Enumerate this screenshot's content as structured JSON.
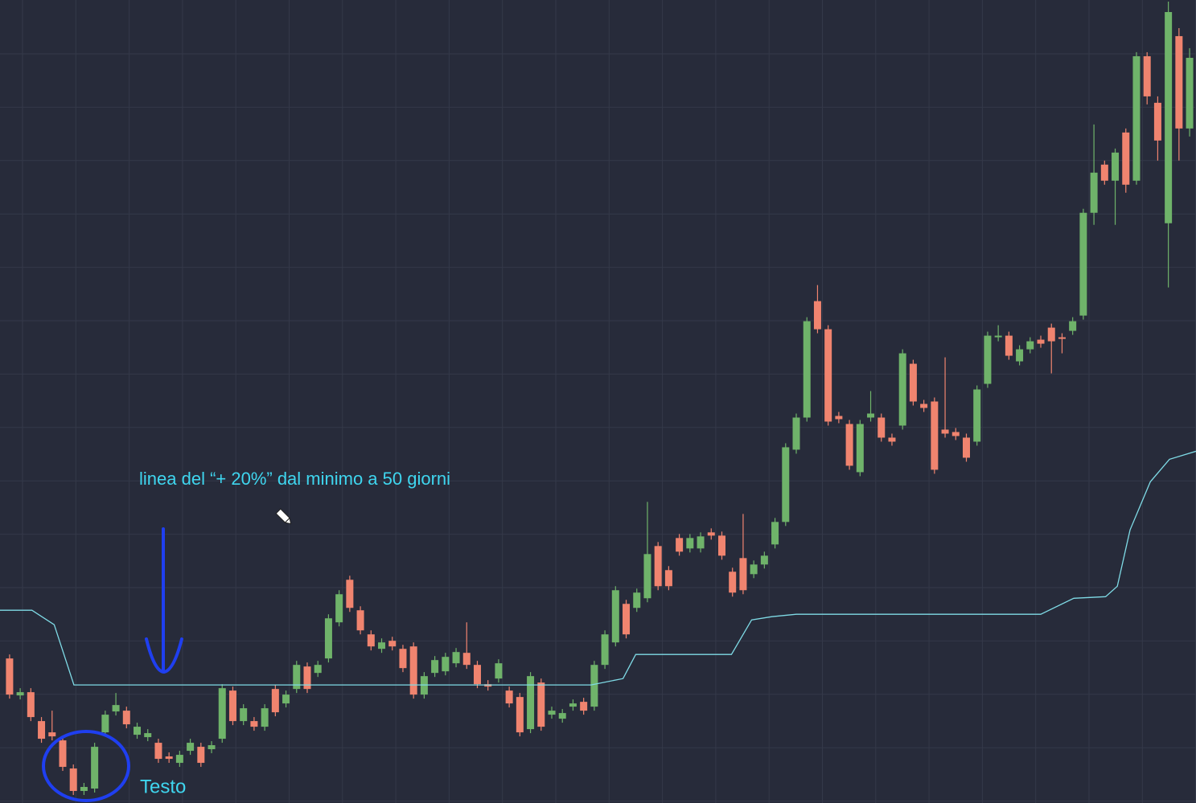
{
  "chart_data": {
    "type": "candlestick",
    "open": [
      18.0,
      13.4,
      13.8,
      10.2,
      8.8,
      7.8,
      4.3,
      1.5,
      1.8,
      8.8,
      11.4,
      11.5,
      8.5,
      8.2,
      7.5,
      5.8,
      5.0,
      6.5,
      7.0,
      6.7,
      8.0,
      14.0,
      10.2,
      10.2,
      9.5,
      14.2,
      12.4,
      14.2,
      17.0,
      16.2,
      18.0,
      22.5,
      27.8,
      24.0,
      21.0,
      19.2,
      20.2,
      19.2,
      19.5,
      13.5,
      16.2,
      16.4,
      17.4,
      18.7,
      17.2,
      14.8,
      15.5,
      14.0,
      13.2,
      9.2,
      15.0,
      11.0,
      10.5,
      12.0,
      12.6,
      12.0,
      17.2,
      20.0,
      24.8,
      24.3,
      25.5,
      32.0,
      29.0,
      33.0,
      31.7,
      31.7,
      33.7,
      33.3,
      28.8,
      30.5,
      28.5,
      29.7,
      32.2,
      35.0,
      44.0,
      48.0,
      62.5,
      59.0,
      48.2,
      47.2,
      41.2,
      48.0,
      48.0,
      45.5,
      47.0,
      54.7,
      49.7,
      50.0,
      46.5,
      46.2,
      45.5,
      45.0,
      52.2,
      58.0,
      58.2,
      55.0,
      56.5,
      57.7,
      59.2,
      58.0,
      58.8,
      60.7,
      73.5,
      79.5,
      77.5,
      83.5,
      77.5,
      93.0,
      87.2,
      72.2,
      95.5,
      84.0
    ],
    "close": [
      13.5,
      13.8,
      10.7,
      8.0,
      8.3,
      4.5,
      1.5,
      2.0,
      7.0,
      11.0,
      12.2,
      9.8,
      9.5,
      8.7,
      5.5,
      5.5,
      6.0,
      7.5,
      5.0,
      7.2,
      14.3,
      10.2,
      11.8,
      9.5,
      11.8,
      11.3,
      13.5,
      17.2,
      14.2,
      17.2,
      23.0,
      26.0,
      24.3,
      21.5,
      19.5,
      20.0,
      19.5,
      16.8,
      13.5,
      15.8,
      17.8,
      18.2,
      18.8,
      17.2,
      14.8,
      14.5,
      17.4,
      12.4,
      8.8,
      15.8,
      9.5,
      11.5,
      11.2,
      12.4,
      11.5,
      17.2,
      21.0,
      26.5,
      21.0,
      26.2,
      31.0,
      27.0,
      27.0,
      31.3,
      33.0,
      33.2,
      33.3,
      30.8,
      26.2,
      26.5,
      29.7,
      30.8,
      35.0,
      44.3,
      48.0,
      60.0,
      59.0,
      47.5,
      47.8,
      42.0,
      47.2,
      48.5,
      45.5,
      45.0,
      56.0,
      50.0,
      49.2,
      41.5,
      46.0,
      45.7,
      43.0,
      51.5,
      58.2,
      58.2,
      55.7,
      56.5,
      57.5,
      57.2,
      57.5,
      57.8,
      60.0,
      73.5,
      78.5,
      77.5,
      81.0,
      77.0,
      93.0,
      88.0,
      82.5,
      98.5,
      84.0,
      92.8
    ],
    "high": [
      18.5,
      14.3,
      14.3,
      10.7,
      11.5,
      8.3,
      4.8,
      2.5,
      7.5,
      11.5,
      13.7,
      12.0,
      10.0,
      9.2,
      8.0,
      6.3,
      6.5,
      8.0,
      7.5,
      7.7,
      14.8,
      14.5,
      12.3,
      10.7,
      12.3,
      14.7,
      14.0,
      17.7,
      17.5,
      17.7,
      23.5,
      26.5,
      28.3,
      24.5,
      21.5,
      20.5,
      20.7,
      19.7,
      20.0,
      16.3,
      18.3,
      18.7,
      19.3,
      22.5,
      17.7,
      15.3,
      17.9,
      14.5,
      13.7,
      16.3,
      15.5,
      12.0,
      11.7,
      12.9,
      13.1,
      17.7,
      21.5,
      27.0,
      25.3,
      26.7,
      37.5,
      32.5,
      29.5,
      33.5,
      33.5,
      33.7,
      34.2,
      33.8,
      29.3,
      36.0,
      30.2,
      31.3,
      35.5,
      44.8,
      48.5,
      60.5,
      64.5,
      59.5,
      48.7,
      47.7,
      47.7,
      51.3,
      48.5,
      46.0,
      56.5,
      55.2,
      50.2,
      50.5,
      55.5,
      46.7,
      46.0,
      52.0,
      58.7,
      59.5,
      58.7,
      57.0,
      58.0,
      58.2,
      59.7,
      58.5,
      60.5,
      74.0,
      84.5,
      80.0,
      81.5,
      84.0,
      93.5,
      93.5,
      88.0,
      99.8,
      96.5,
      94.0
    ],
    "low": [
      13.0,
      12.9,
      10.2,
      7.5,
      7.8,
      4.0,
      1.0,
      1.0,
      1.3,
      8.3,
      10.9,
      9.3,
      8.0,
      7.7,
      5.0,
      5.0,
      4.5,
      6.0,
      4.5,
      6.2,
      7.5,
      9.7,
      9.7,
      9.0,
      9.0,
      10.8,
      11.9,
      13.7,
      13.7,
      15.7,
      17.5,
      22.0,
      23.8,
      21.0,
      19.0,
      18.7,
      19.0,
      16.3,
      13.0,
      13.0,
      15.7,
      15.9,
      16.9,
      16.7,
      14.3,
      14.0,
      15.0,
      11.9,
      8.3,
      8.7,
      9.0,
      10.5,
      10.0,
      11.5,
      11.0,
      11.5,
      16.7,
      19.5,
      20.5,
      23.8,
      25.0,
      26.5,
      26.5,
      30.8,
      31.2,
      31.2,
      32.8,
      30.3,
      25.7,
      26.0,
      28.0,
      29.2,
      31.7,
      34.5,
      43.5,
      47.5,
      58.5,
      47.0,
      47.3,
      41.5,
      40.7,
      47.5,
      45.0,
      44.5,
      46.5,
      49.5,
      48.7,
      41.0,
      45.5,
      45.2,
      42.5,
      44.5,
      51.7,
      57.5,
      55.2,
      54.5,
      56.0,
      56.7,
      53.5,
      56.0,
      58.3,
      60.2,
      72.0,
      77.0,
      72.0,
      76.0,
      77.0,
      87.0,
      80.0,
      64.2,
      80.0,
      83.0
    ],
    "up_color": "#6fb36a",
    "down_color": "#f0846f",
    "line": {
      "color": "#7fdbe6",
      "x": [
        -0.9,
        2.1,
        4.2,
        6.05,
        54.7,
        57.7,
        58.9,
        67.9,
        69.8,
        71.7,
        74.0,
        97.0,
        100.1,
        103.1,
        104.2,
        105.4,
        107.3,
        109.1,
        111.6
      ],
      "values": [
        24.0,
        24.0,
        22.2,
        14.7,
        14.7,
        15.5,
        18.5,
        18.5,
        22.8,
        23.2,
        23.5,
        23.5,
        25.5,
        25.7,
        27.0,
        34.0,
        40.0,
        42.8,
        43.8
      ]
    },
    "annotations": [
      "linea del “+ 20%” dal minimo a 50 giorni",
      "Testo"
    ],
    "xlim": [
      -0.9,
      111.6
    ],
    "ylim": [
      0,
      100
    ],
    "grid": true
  }
}
